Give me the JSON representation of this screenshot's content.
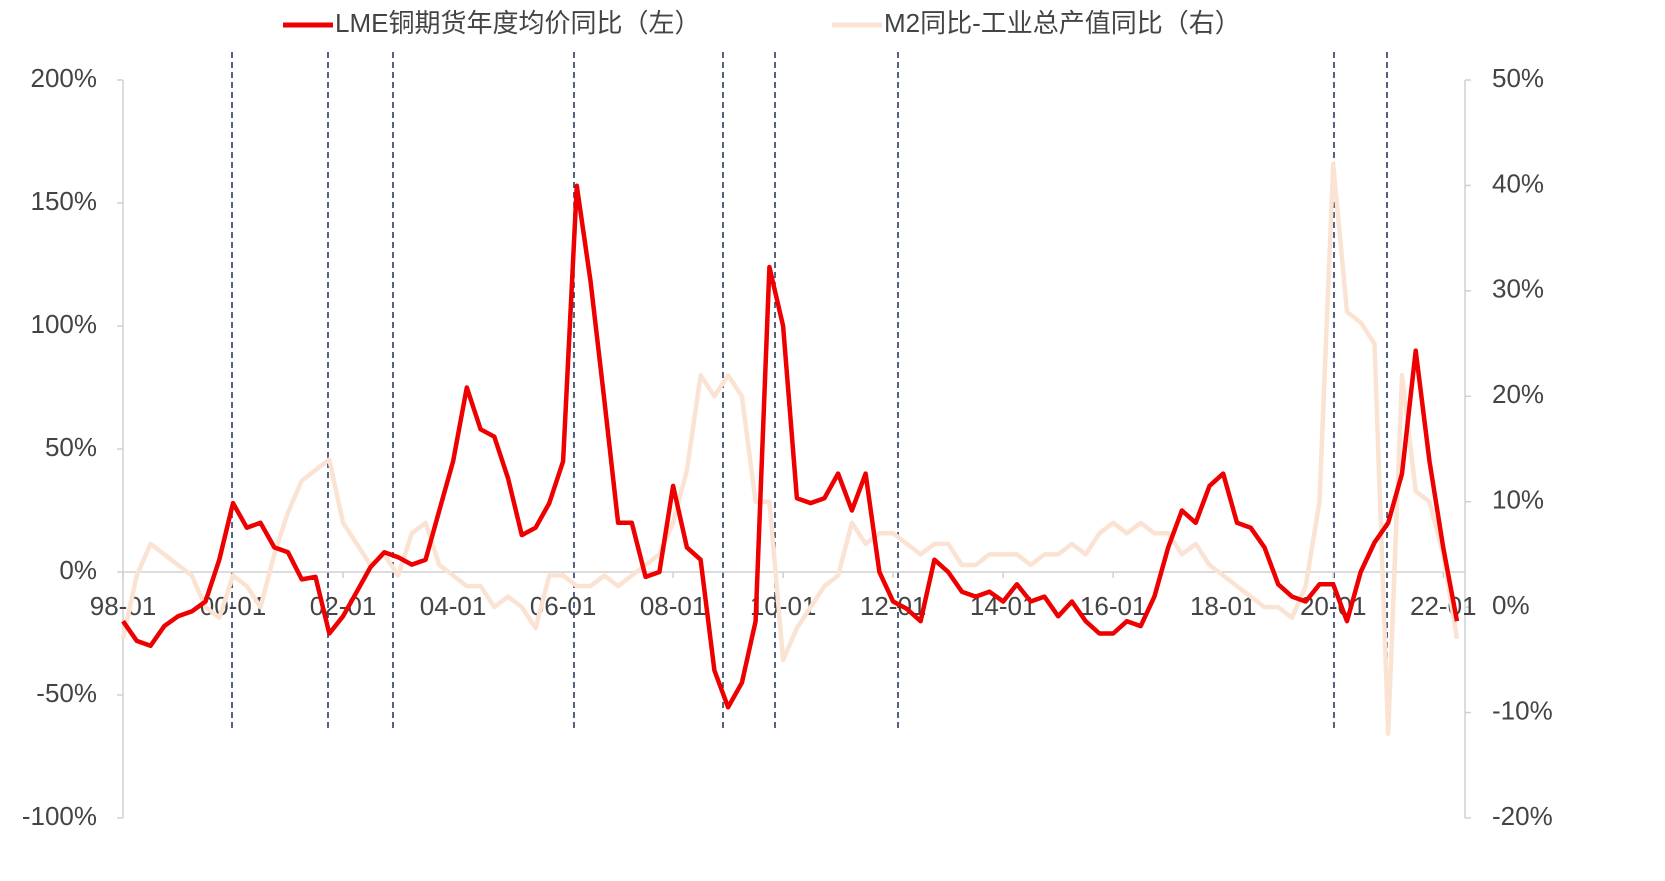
{
  "chart_data": {
    "type": "line",
    "categories": [
      "98-01",
      null,
      null,
      null,
      null,
      null,
      null,
      null,
      "00-01",
      null,
      null,
      null,
      null,
      null,
      null,
      null,
      "02-01",
      null,
      null,
      null,
      null,
      null,
      null,
      null,
      "04-01",
      null,
      null,
      null,
      null,
      null,
      null,
      null,
      "06-01",
      null,
      null,
      null,
      null,
      null,
      null,
      null,
      "08-01",
      null,
      null,
      null,
      null,
      null,
      null,
      null,
      "10-01",
      null,
      null,
      null,
      null,
      null,
      null,
      null,
      "12-01",
      null,
      null,
      null,
      null,
      null,
      null,
      null,
      "14-01",
      null,
      null,
      null,
      null,
      null,
      null,
      null,
      "16-01",
      null,
      null,
      null,
      null,
      null,
      null,
      null,
      "18-01",
      null,
      null,
      null,
      null,
      null,
      null,
      null,
      "20-01",
      null,
      null,
      null,
      null,
      null,
      null,
      null,
      "22-01",
      null
    ],
    "series": [
      {
        "name": "LME铜期货年度均价同比（左）",
        "color": "#ee0000",
        "axis": "y",
        "values": [
          -20,
          -28,
          -30,
          -22,
          -18,
          -16,
          -12,
          5,
          28,
          18,
          20,
          10,
          8,
          -3,
          -2,
          -25,
          -18,
          -8,
          2,
          8,
          6,
          3,
          5,
          25,
          45,
          75,
          58,
          55,
          38,
          15,
          18,
          28,
          45,
          157,
          118,
          70,
          20,
          20,
          -2,
          0,
          35,
          10,
          5,
          -40,
          -55,
          -45,
          -20,
          124,
          100,
          30,
          28,
          30,
          40,
          25,
          40,
          0,
          -12,
          -15,
          -20,
          5,
          0,
          -8,
          -10,
          -8,
          -12,
          -5,
          -12,
          -10,
          -18,
          -12,
          -20,
          -25,
          -25,
          -20,
          -22,
          -10,
          10,
          25,
          20,
          35,
          40,
          20,
          18,
          10,
          -5,
          -10,
          -12,
          -5,
          -5,
          -20,
          0,
          12,
          20,
          40,
          90,
          45,
          10,
          -20
        ]
      },
      {
        "name": "M2同比-工业总产值同比（右）",
        "color": "#fbe3d3",
        "axis": "y2",
        "values": [
          -3,
          3,
          6,
          5,
          4,
          3,
          0,
          -1,
          3,
          2,
          0,
          5,
          9,
          12,
          13,
          14,
          8,
          6,
          4,
          5,
          3,
          7,
          8,
          4,
          3,
          2,
          2,
          0,
          1,
          0,
          -2,
          3,
          3,
          2,
          2,
          3,
          2,
          3,
          4,
          5,
          8,
          13,
          22,
          20,
          22,
          20,
          10,
          10,
          -5,
          -2,
          0,
          2,
          3,
          8,
          6,
          7,
          7,
          6,
          5,
          6,
          6,
          4,
          4,
          5,
          5,
          5,
          4,
          5,
          5,
          6,
          5,
          7,
          8,
          7,
          8,
          7,
          7,
          5,
          6,
          4,
          3,
          2,
          1,
          0,
          0,
          -1,
          2,
          10,
          42,
          28,
          27,
          25,
          -12,
          22,
          11,
          10,
          5,
          -3
        ]
      }
    ],
    "ylim": [
      -100,
      200
    ],
    "yticks": [
      {
        "value": -100,
        "label": "-100%"
      },
      {
        "value": -50,
        "label": "-50%"
      },
      {
        "value": 0,
        "label": "0%"
      },
      {
        "value": 50,
        "label": "50%"
      },
      {
        "value": 100,
        "label": "100%"
      },
      {
        "value": 150,
        "label": "150%"
      },
      {
        "value": 200,
        "label": "200%"
      }
    ],
    "y2lim": [
      -20,
      50
    ],
    "y2ticks": [
      {
        "value": -20,
        "label": "-20%"
      },
      {
        "value": -10,
        "label": "-10%"
      },
      {
        "value": 0,
        "label": "0%"
      },
      {
        "value": 10,
        "label": "10%"
      },
      {
        "value": 20,
        "label": "20%"
      },
      {
        "value": 30,
        "label": "30%"
      },
      {
        "value": 40,
        "label": "40%"
      },
      {
        "value": 50,
        "label": "50%"
      }
    ],
    "legend": "top"
  }
}
